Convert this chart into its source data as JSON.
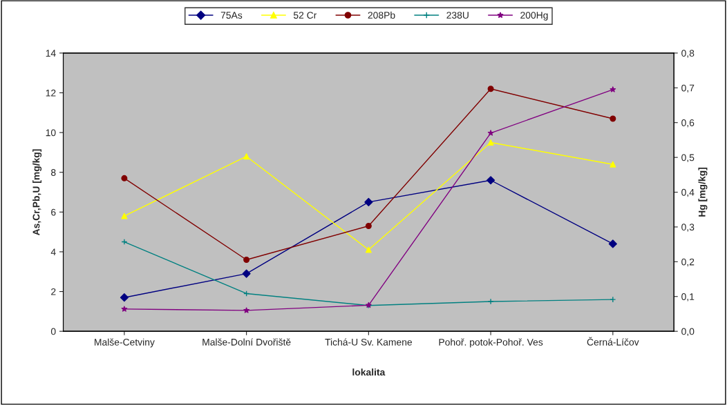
{
  "chart_data": {
    "type": "line",
    "categories": [
      "Malše-Cetviny",
      "Malše-Dolní Dvořiště",
      "Tichá-U Sv. Kamene",
      "Pohoř. potok-Pohoř. Ves",
      "Černá-Líčov"
    ],
    "xlabel": "lokalita",
    "ylabel": "As,Cr,Pb,U [mg/kg]",
    "y2label": "Hg [mg/kg]",
    "ylim": [
      0,
      14
    ],
    "yticks": [
      0,
      2,
      4,
      6,
      8,
      10,
      12,
      14
    ],
    "y2lim": [
      0,
      0.8
    ],
    "y2ticks": [
      {
        "value": 0,
        "label": "0,0"
      },
      {
        "value": 0.1,
        "label": "0,1"
      },
      {
        "value": 0.2,
        "label": "0,2"
      },
      {
        "value": 0.3,
        "label": "0,3"
      },
      {
        "value": 0.4,
        "label": "0,4"
      },
      {
        "value": 0.5,
        "label": "0,5"
      },
      {
        "value": 0.6,
        "label": "0,6"
      },
      {
        "value": 0.7,
        "label": "0,7"
      },
      {
        "value": 0.8,
        "label": "0,8"
      }
    ],
    "grid": false,
    "legend": "top",
    "series": [
      {
        "name": "75As",
        "color": "#000080",
        "marker": "diamond",
        "values": [
          1.7,
          2.9,
          6.5,
          7.6,
          4.4
        ]
      },
      {
        "name": "52 Cr",
        "color": "#ffff00",
        "marker": "triangle",
        "values": [
          5.8,
          8.8,
          4.1,
          9.5,
          8.4
        ]
      },
      {
        "name": "208Pb",
        "color": "#800000",
        "marker": "circle",
        "values": [
          7.7,
          3.6,
          5.3,
          12.2,
          10.7
        ]
      },
      {
        "name": "238U",
        "color": "#008080",
        "marker": "cross",
        "values": [
          4.5,
          1.9,
          1.3,
          1.5,
          1.6
        ]
      },
      {
        "name": "200Hg",
        "color": "#800080",
        "marker": "star",
        "axis": "y2",
        "values": [
          0.064,
          0.06,
          0.075,
          0.57,
          0.695
        ]
      }
    ]
  }
}
